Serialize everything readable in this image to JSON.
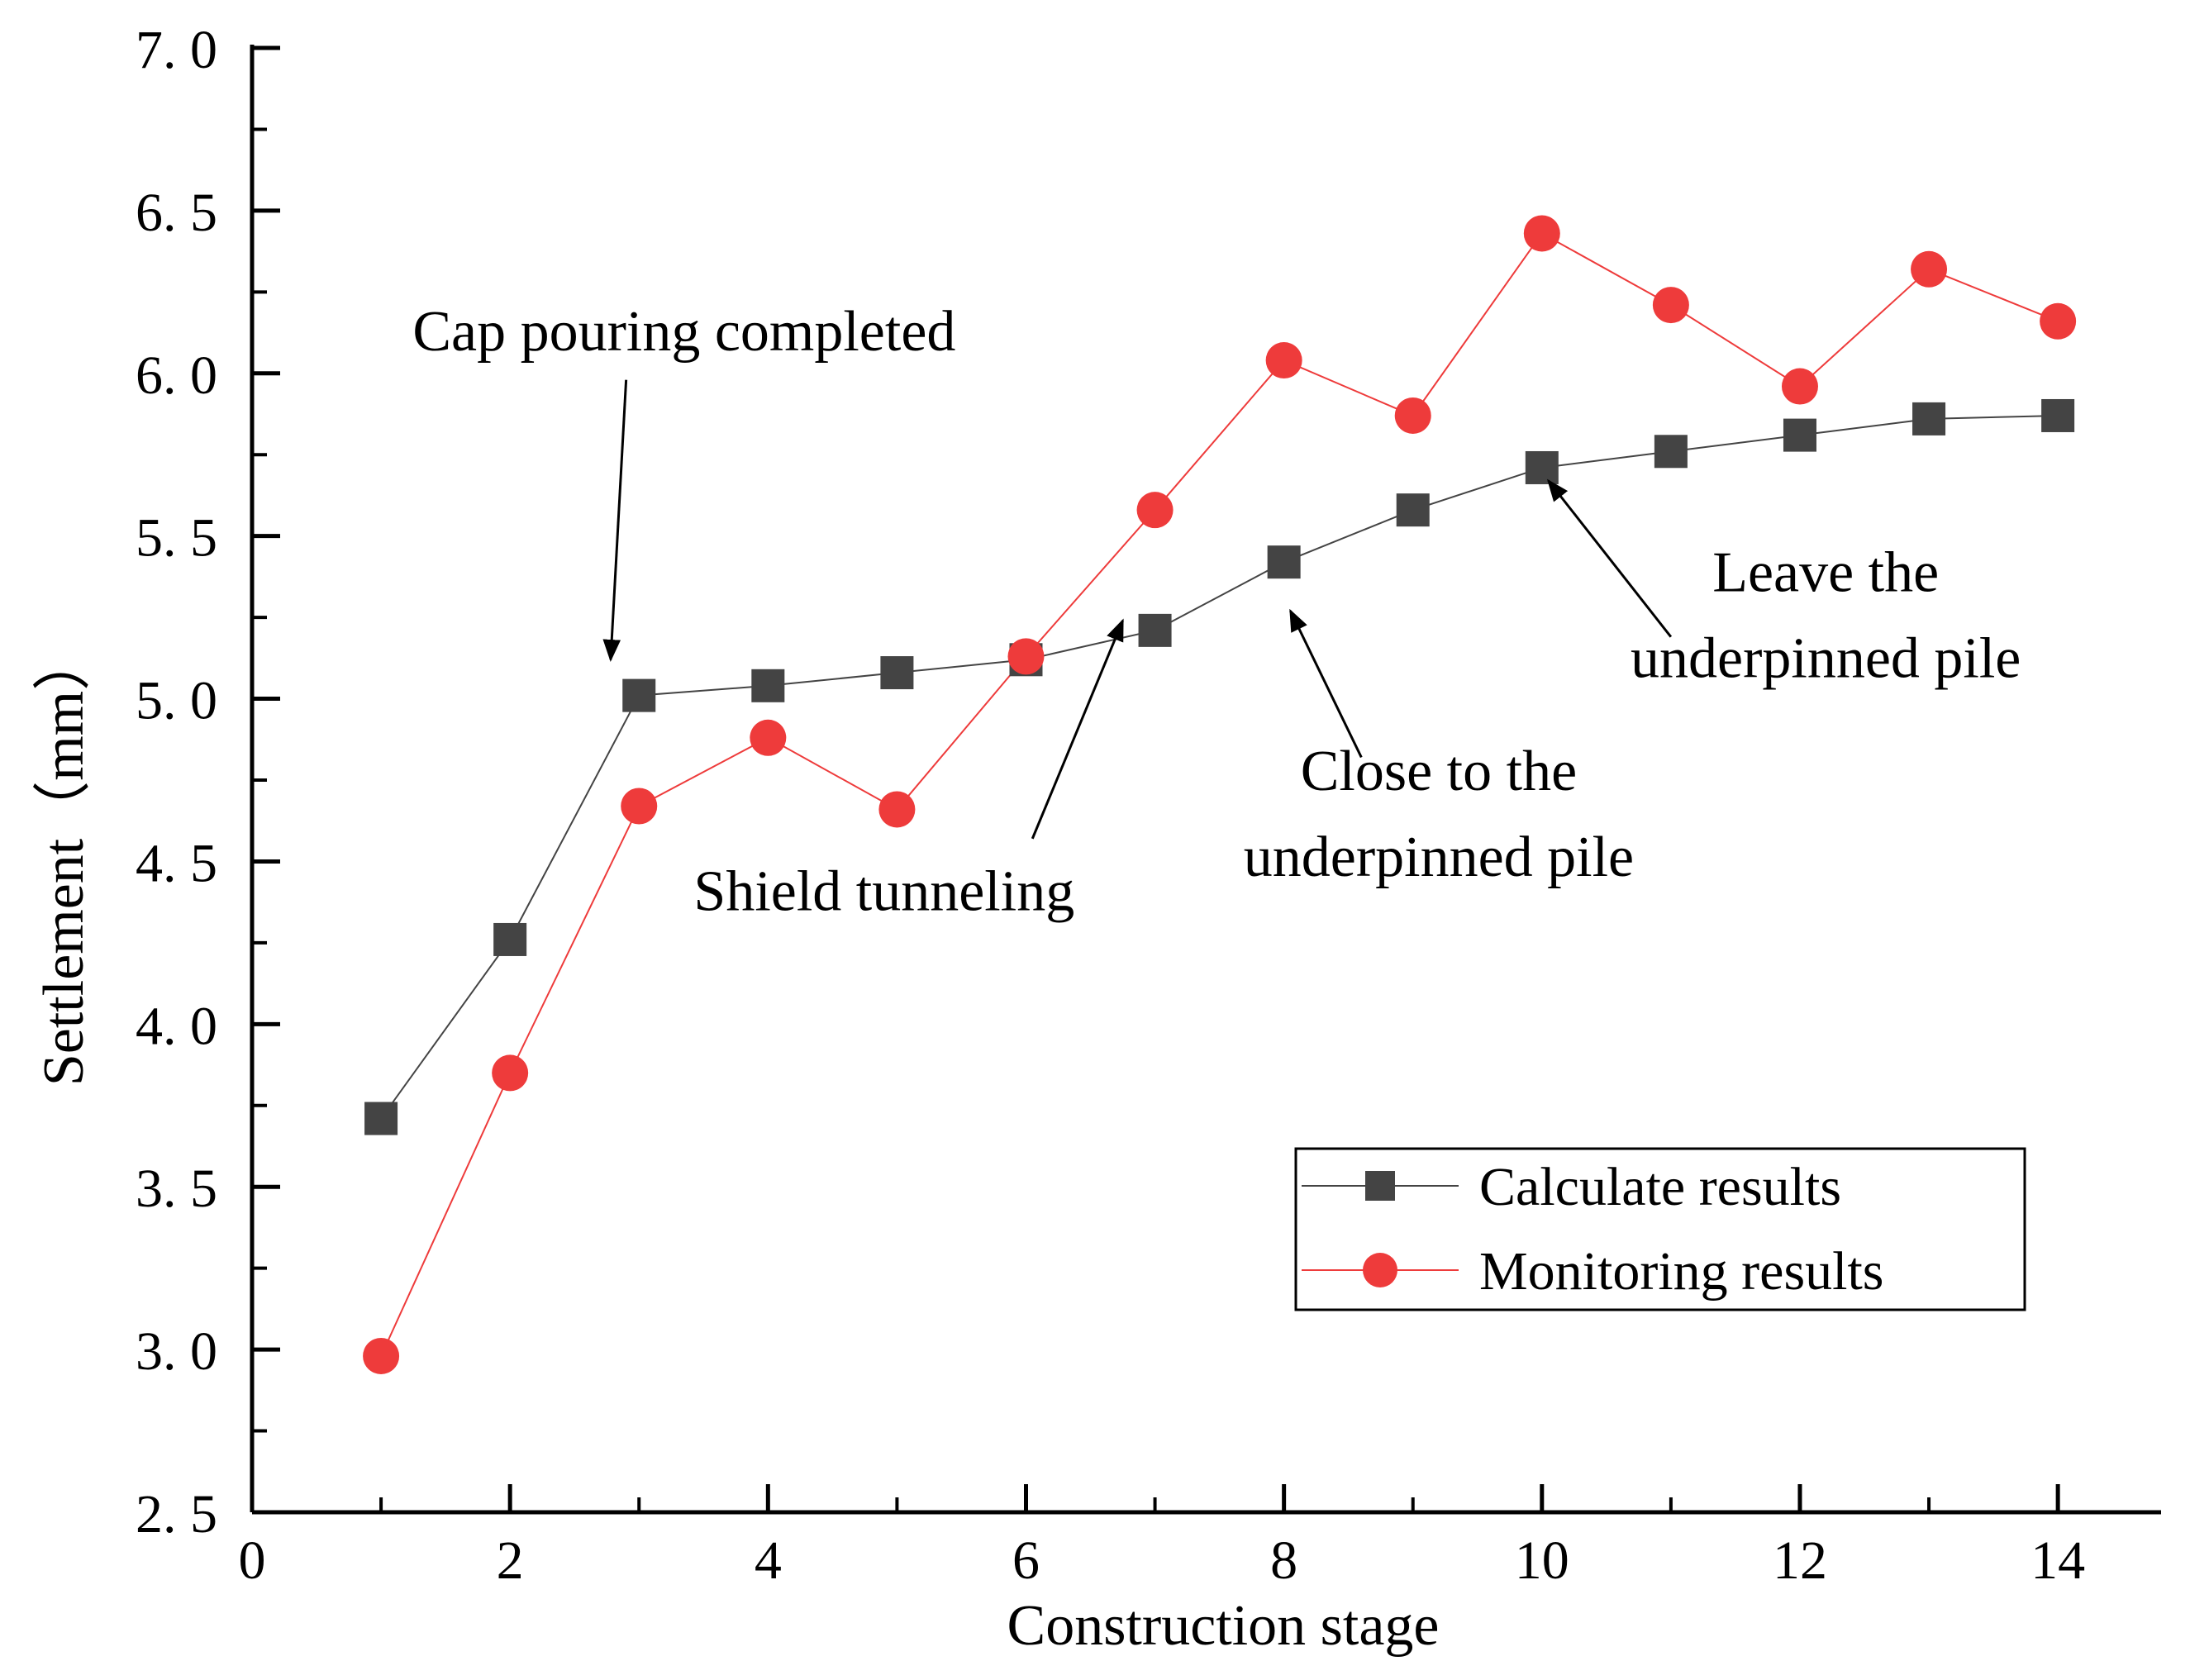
{
  "chart_data": {
    "type": "line",
    "title": "",
    "xlabel": "Construction stage",
    "ylabel": "Settlement（mm）",
    "xlim": [
      0,
      14.8
    ],
    "ylim": [
      2.5,
      7.0
    ],
    "x_ticks": [
      0,
      2,
      4,
      6,
      8,
      10,
      12,
      14
    ],
    "x_tick_labels": [
      "0",
      "2",
      "4",
      "6",
      "8",
      "10",
      "12",
      "14"
    ],
    "x_minor_ticks": [
      1,
      3,
      5,
      7,
      9,
      11,
      13
    ],
    "y_ticks": [
      2.5,
      3.0,
      3.5,
      4.0,
      4.5,
      5.0,
      5.5,
      6.0,
      6.5,
      7.0
    ],
    "y_tick_labels": [
      "2. 5",
      "3. 0",
      "3. 5",
      "4. 0",
      "4. 5",
      "5. 0",
      "5. 5",
      "6. 0",
      "6. 5",
      "7. 0"
    ],
    "y_minor_ticks": [
      2.75,
      3.25,
      3.75,
      4.25,
      4.75,
      5.25,
      5.75,
      6.25,
      6.75
    ],
    "grid": false,
    "legend_position": "bottom-right",
    "x": [
      1,
      2,
      3,
      4,
      5,
      6,
      7,
      8,
      9,
      10,
      11,
      12,
      13,
      14
    ],
    "series": [
      {
        "name": "Calculate results",
        "marker": "square",
        "color": "#444444",
        "values": [
          3.71,
          4.26,
          5.01,
          5.04,
          5.08,
          5.12,
          5.21,
          5.42,
          5.58,
          5.71,
          5.76,
          5.81,
          5.86,
          5.87
        ]
      },
      {
        "name": "Monitoring results",
        "marker": "circle",
        "color": "#ee3b3b",
        "values": [
          2.98,
          3.85,
          4.67,
          4.88,
          4.66,
          5.13,
          5.58,
          6.04,
          5.87,
          6.43,
          6.21,
          5.96,
          6.32,
          6.16
        ]
      }
    ],
    "annotations": [
      {
        "lines": [
          "Cap pouring completed"
        ],
        "text_at": [
          3.35,
          6.07
        ],
        "anchor": "middle",
        "arrow_from": [
          2.9,
          5.98
        ],
        "arrow_to": [
          2.78,
          5.12
        ]
      },
      {
        "lines": [
          "Shield tunneling"
        ],
        "text_at": [
          4.9,
          4.35
        ],
        "anchor": "middle",
        "arrow_from": [
          6.05,
          4.57
        ],
        "arrow_to": [
          6.75,
          5.24
        ]
      },
      {
        "lines": [
          "Close to the",
          "underpinned pile"
        ],
        "text_at": [
          9.2,
          4.72
        ],
        "anchor": "middle",
        "arrow_from": [
          8.6,
          4.82
        ],
        "arrow_to": [
          8.05,
          5.27
        ]
      },
      {
        "lines": [
          "Leave the",
          "underpinned pile"
        ],
        "text_at": [
          12.2,
          5.33
        ],
        "anchor": "middle",
        "arrow_from": [
          11.0,
          5.19
        ],
        "arrow_to": [
          10.05,
          5.67
        ]
      }
    ]
  }
}
